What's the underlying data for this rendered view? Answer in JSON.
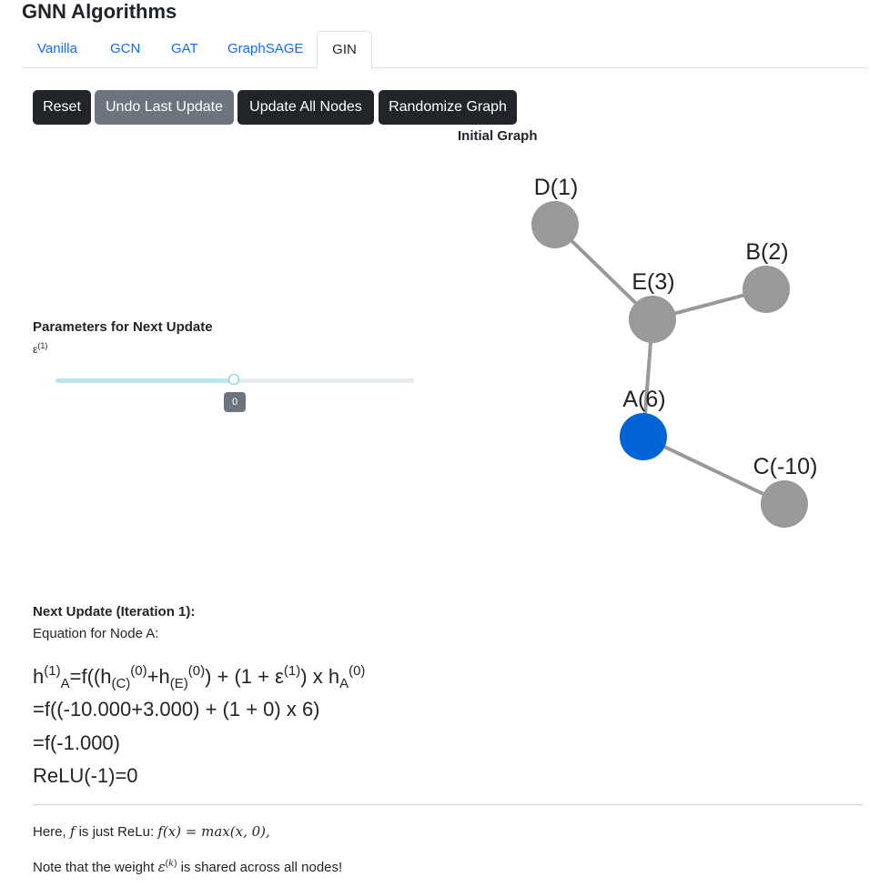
{
  "page_title": "GNN Algorithms",
  "tabs": [
    {
      "label": "Vanilla",
      "active": false
    },
    {
      "label": "GCN",
      "active": false
    },
    {
      "label": "GAT",
      "active": false
    },
    {
      "label": "GraphSAGE",
      "active": false
    },
    {
      "label": "GIN",
      "active": true
    }
  ],
  "toolbar": {
    "reset_label": "Reset",
    "undo_label": "Undo Last Update",
    "update_all_label": "Update All Nodes",
    "randomize_label": "Randomize Graph"
  },
  "graph": {
    "title": "Initial Graph",
    "node_default_color": "#999999",
    "selected_color": "#0063d8",
    "nodes": [
      {
        "id": "D",
        "label": "D(1)"
      },
      {
        "id": "B",
        "label": "B(2)"
      },
      {
        "id": "E",
        "label": "E(3)"
      },
      {
        "id": "A",
        "label": "A(6)",
        "selected": true
      },
      {
        "id": "C",
        "label": "C(-10)"
      }
    ]
  },
  "params": {
    "heading": "Parameters for Next Update",
    "epsilon_symbol": "ε",
    "epsilon_sup": "(1)",
    "epsilon_value": "0",
    "slider_fraction": 0.5
  },
  "update": {
    "heading": "Next Update (Iteration 1):",
    "equation_label": "Equation for Node A:",
    "line2": "=f((-10.000+3.000) + (1 + 0) x 6)",
    "line3": "=f(-1.000)",
    "line4": "ReLU(-1)=0"
  },
  "notes": {
    "relu_prefix": "Here,",
    "relu_middle": "is just ReLu:",
    "relu_formula": "f(x) = max(x, 0),",
    "shared_prefix": "Note that the weight",
    "shared_suffix": "is shared across all nodes!"
  }
}
